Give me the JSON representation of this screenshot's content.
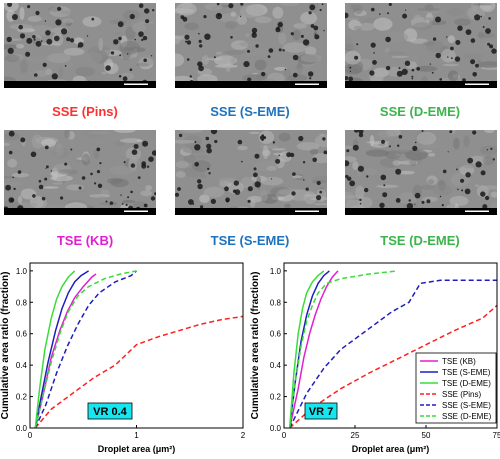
{
  "micrographs": {
    "row1": [
      {
        "label": "SSE (Pins)",
        "color": "#ff3030"
      },
      {
        "label": "SSE (S-EME)",
        "color": "#1e73be"
      },
      {
        "label": "SSE (D-EME)",
        "color": "#3cb44b"
      }
    ],
    "row2": [
      {
        "label": "TSE (KB)",
        "color": "#e020d0"
      },
      {
        "label": "TSE (S-EME)",
        "color": "#1e73be"
      },
      {
        "label": "TSE (D-EME)",
        "color": "#3cb44b"
      }
    ]
  },
  "chart_data": [
    {
      "type": "line",
      "ylabel": "Cumulative area ratio (fraction)",
      "xlabel": "Droplet area (μm²)",
      "xlim": [
        0,
        2
      ],
      "ylim": [
        0,
        1.05
      ],
      "xticks": [
        "0",
        "1",
        "2"
      ],
      "yticks": [
        "0.0",
        "0.2",
        "0.4",
        "0.6",
        "0.8",
        "1.0"
      ],
      "annotation": "VR 0.4",
      "series": [
        {
          "name": "TSE (KB)",
          "color": "#e020d0",
          "dash": "solid",
          "x": [
            0.05,
            0.12,
            0.2,
            0.28,
            0.35,
            0.42,
            0.5,
            0.58,
            0.62
          ],
          "y": [
            0,
            0.2,
            0.45,
            0.62,
            0.74,
            0.83,
            0.9,
            0.96,
            0.98
          ]
        },
        {
          "name": "TSE (S-EME)",
          "color": "#1e1ebe",
          "dash": "solid",
          "x": [
            0.05,
            0.1,
            0.17,
            0.24,
            0.3,
            0.36,
            0.42,
            0.48,
            0.55
          ],
          "y": [
            0,
            0.18,
            0.42,
            0.62,
            0.76,
            0.86,
            0.93,
            0.97,
            1.0
          ]
        },
        {
          "name": "TSE (D-EME)",
          "color": "#3adc3a",
          "dash": "solid",
          "x": [
            0.05,
            0.09,
            0.14,
            0.2,
            0.25,
            0.3,
            0.36,
            0.42
          ],
          "y": [
            0,
            0.25,
            0.5,
            0.7,
            0.82,
            0.9,
            0.96,
            1.0
          ]
        },
        {
          "name": "SSE (Pins)",
          "color": "#ff2020",
          "dash": "dashed",
          "x": [
            0.05,
            0.2,
            0.4,
            0.6,
            0.8,
            1.0,
            1.2,
            1.4,
            1.6,
            1.8,
            2.0
          ],
          "y": [
            0,
            0.12,
            0.22,
            0.32,
            0.4,
            0.53,
            0.58,
            0.62,
            0.66,
            0.69,
            0.71
          ]
        },
        {
          "name": "SSE (S-EME)",
          "color": "#1e1ebe",
          "dash": "dashed",
          "x": [
            0.05,
            0.15,
            0.25,
            0.35,
            0.45,
            0.55,
            0.65,
            0.8,
            0.95,
            1.0
          ],
          "y": [
            0,
            0.15,
            0.35,
            0.52,
            0.66,
            0.78,
            0.86,
            0.93,
            0.97,
            1.0
          ]
        },
        {
          "name": "SSE (D-EME)",
          "color": "#3adc3a",
          "dash": "dashed",
          "x": [
            0.05,
            0.12,
            0.2,
            0.28,
            0.36,
            0.45,
            0.55,
            0.7,
            0.85,
            1.0
          ],
          "y": [
            0,
            0.2,
            0.42,
            0.6,
            0.74,
            0.84,
            0.9,
            0.95,
            0.98,
            1.0
          ]
        }
      ]
    },
    {
      "type": "line",
      "ylabel": "Cumulative area ratio (fraction)",
      "xlabel": "Droplet area (μm²)",
      "xlim": [
        0,
        75
      ],
      "ylim": [
        0,
        1.05
      ],
      "xticks": [
        "0",
        "25",
        "50",
        "75"
      ],
      "yticks": [
        "0.0",
        "0.2",
        "0.4",
        "0.6",
        "0.8",
        "1.0"
      ],
      "annotation": "VR 7",
      "legend_position": "bottom-right",
      "series": [
        {
          "name": "TSE (KB)",
          "color": "#e020d0",
          "dash": "solid",
          "x": [
            2,
            5,
            7,
            9,
            11,
            13,
            15,
            17,
            19
          ],
          "y": [
            0,
            0.25,
            0.45,
            0.6,
            0.72,
            0.82,
            0.9,
            0.96,
            1.0
          ]
        },
        {
          "name": "TSE (S-EME)",
          "color": "#1e1ebe",
          "dash": "solid",
          "x": [
            2,
            4,
            6,
            8,
            10,
            12,
            14,
            16
          ],
          "y": [
            0,
            0.3,
            0.55,
            0.72,
            0.84,
            0.92,
            0.97,
            1.0
          ]
        },
        {
          "name": "TSE (D-EME)",
          "color": "#3adc3a",
          "dash": "solid",
          "x": [
            2,
            3.5,
            5,
            6.5,
            8,
            10,
            12,
            14
          ],
          "y": [
            0,
            0.35,
            0.6,
            0.76,
            0.86,
            0.93,
            0.97,
            1.0
          ]
        },
        {
          "name": "SSE (Pins)",
          "color": "#ff2020",
          "dash": "dashed",
          "x": [
            2,
            10,
            20,
            30,
            40,
            50,
            60,
            70,
            75
          ],
          "y": [
            0,
            0.13,
            0.25,
            0.35,
            0.44,
            0.53,
            0.62,
            0.7,
            0.78
          ]
        },
        {
          "name": "SSE (S-EME)",
          "color": "#1e1ebe",
          "dash": "dashed",
          "x": [
            2,
            8,
            14,
            20,
            26,
            32,
            38,
            44,
            48,
            55,
            65,
            75
          ],
          "y": [
            0,
            0.22,
            0.38,
            0.5,
            0.58,
            0.66,
            0.74,
            0.8,
            0.92,
            0.94,
            0.94,
            0.94
          ]
        },
        {
          "name": "SSE (D-EME)",
          "color": "#3adc3a",
          "dash": "dashed",
          "x": [
            2,
            4,
            6,
            8,
            10,
            12,
            15,
            20,
            30,
            40
          ],
          "y": [
            0,
            0.3,
            0.52,
            0.68,
            0.78,
            0.86,
            0.92,
            0.95,
            0.98,
            1.0
          ]
        }
      ]
    }
  ]
}
